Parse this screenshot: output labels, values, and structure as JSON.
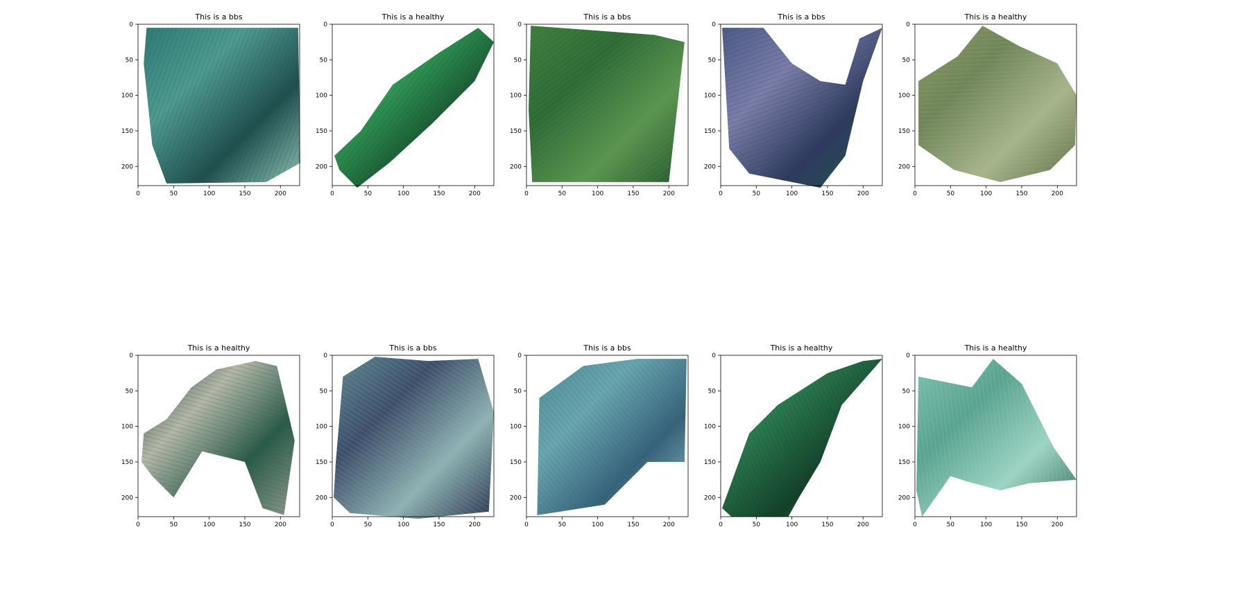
{
  "figure": {
    "axes": {
      "x_ticks": [
        "0",
        "50",
        "100",
        "150",
        "200"
      ],
      "y_ticks": [
        "0",
        "50",
        "100",
        "150",
        "200"
      ],
      "xlim": [
        0,
        227
      ],
      "ylim": [
        227,
        0
      ]
    },
    "panels": [
      {
        "title": "This is a bbs",
        "label": "bbs",
        "image": "banana-leaf-bbs-1",
        "colors": [
          "#2f7a73",
          "#4e9a90",
          "#1f4e4d",
          "#8fc1b4"
        ]
      },
      {
        "title": "This is a healthy",
        "label": "healthy",
        "image": "banana-leaf-healthy-1",
        "colors": [
          "#1f7a3e",
          "#33a05a",
          "#164f2b",
          "#5cc080"
        ]
      },
      {
        "title": "This is a bbs",
        "label": "bbs",
        "image": "banana-leaf-bbs-2",
        "colors": [
          "#3f7d3d",
          "#2d6a36",
          "#5c9550",
          "#24592f"
        ]
      },
      {
        "title": "This is a bbs",
        "label": "bbs",
        "image": "banana-leaf-bbs-3",
        "colors": [
          "#4d5b87",
          "#7a7ea8",
          "#2e3a5e",
          "#1f5a4a"
        ]
      },
      {
        "title": "This is a healthy",
        "label": "healthy",
        "image": "banana-leaf-healthy-2",
        "colors": [
          "#8a9a6a",
          "#6f8558",
          "#a7b58c",
          "#5d7248"
        ]
      },
      {
        "title": "This is a healthy",
        "label": "healthy",
        "image": "banana-leaf-healthy-3",
        "colors": [
          "#1d3f35",
          "#b3b7a8",
          "#2a5a48",
          "#8f9a8c"
        ]
      },
      {
        "title": "This is a bbs",
        "label": "bbs",
        "image": "banana-leaf-bbs-4",
        "colors": [
          "#5f8a93",
          "#3e4e6a",
          "#8fb3b3",
          "#2a3550"
        ]
      },
      {
        "title": "This is a bbs",
        "label": "bbs",
        "image": "banana-leaf-bbs-5",
        "colors": [
          "#4f8a95",
          "#6aa6ae",
          "#35627a",
          "#8dbfc0"
        ]
      },
      {
        "title": "This is a healthy",
        "label": "healthy",
        "image": "banana-leaf-healthy-4",
        "colors": [
          "#1c5a3a",
          "#2a7a50",
          "#134028",
          "#3f9a6a"
        ]
      },
      {
        "title": "This is a healthy",
        "label": "healthy",
        "image": "banana-leaf-healthy-5",
        "colors": [
          "#7fc0b0",
          "#5aa390",
          "#9ed4c4",
          "#2f6a5a"
        ]
      }
    ]
  }
}
